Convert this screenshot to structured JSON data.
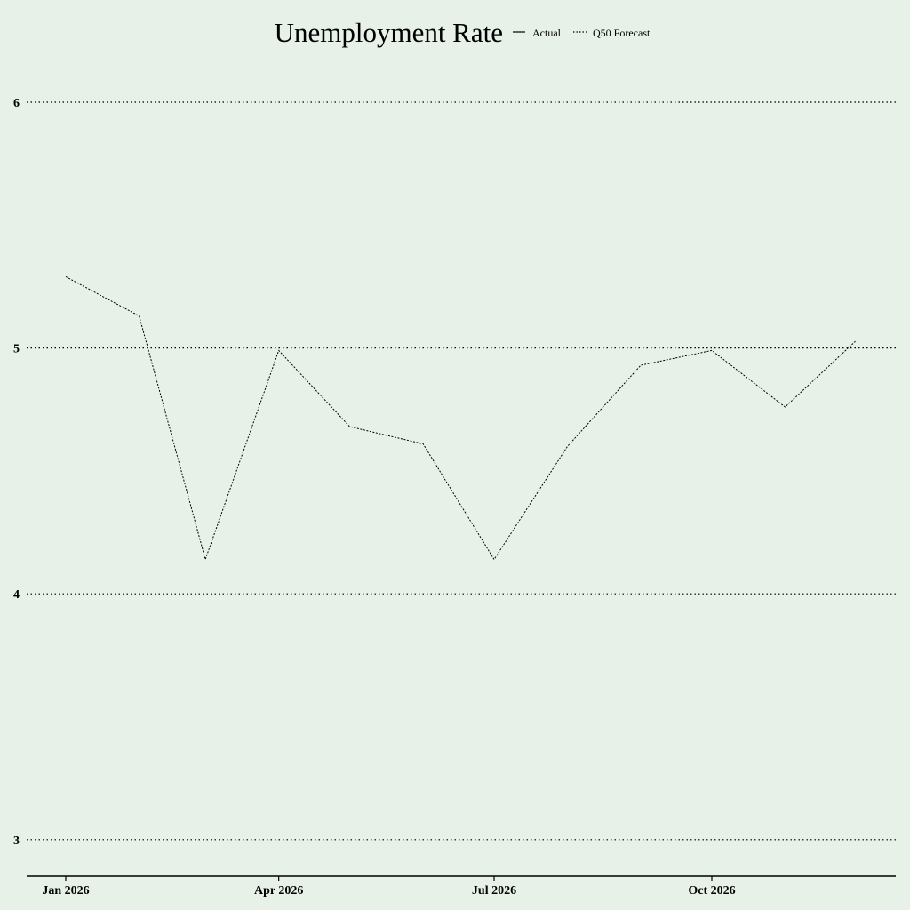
{
  "chart_data": {
    "type": "line",
    "title": "Unemployment Rate",
    "xlabel": "",
    "ylabel": "",
    "x_ticks": [
      "Jan 2026",
      "Apr 2026",
      "Jul 2026",
      "Oct 2026"
    ],
    "y_ticks": [
      "3",
      "4",
      "5",
      "6"
    ],
    "ylim": [
      2.85,
      6.25
    ],
    "xlim": [
      "2025-12-15",
      "2026-12-31"
    ],
    "grid": "horizontal dotted",
    "legend_position": "top",
    "series": [
      {
        "name": "Actual",
        "style": "solid",
        "x": [],
        "values": []
      },
      {
        "name": "Q50 Forecast",
        "style": "dotted",
        "x": [
          "2026-01-01",
          "2026-02-01",
          "2026-03-01",
          "2026-04-01",
          "2026-05-01",
          "2026-06-01",
          "2026-07-01",
          "2026-08-01",
          "2026-09-01",
          "2026-10-01",
          "2026-11-01",
          "2026-12-01"
        ],
        "values": [
          5.29,
          5.13,
          4.14,
          4.99,
          4.68,
          4.61,
          4.14,
          4.6,
          4.93,
          4.99,
          4.76,
          5.03
        ]
      }
    ]
  },
  "colors": {
    "background": "#e8f1e8",
    "ink": "#000000"
  }
}
